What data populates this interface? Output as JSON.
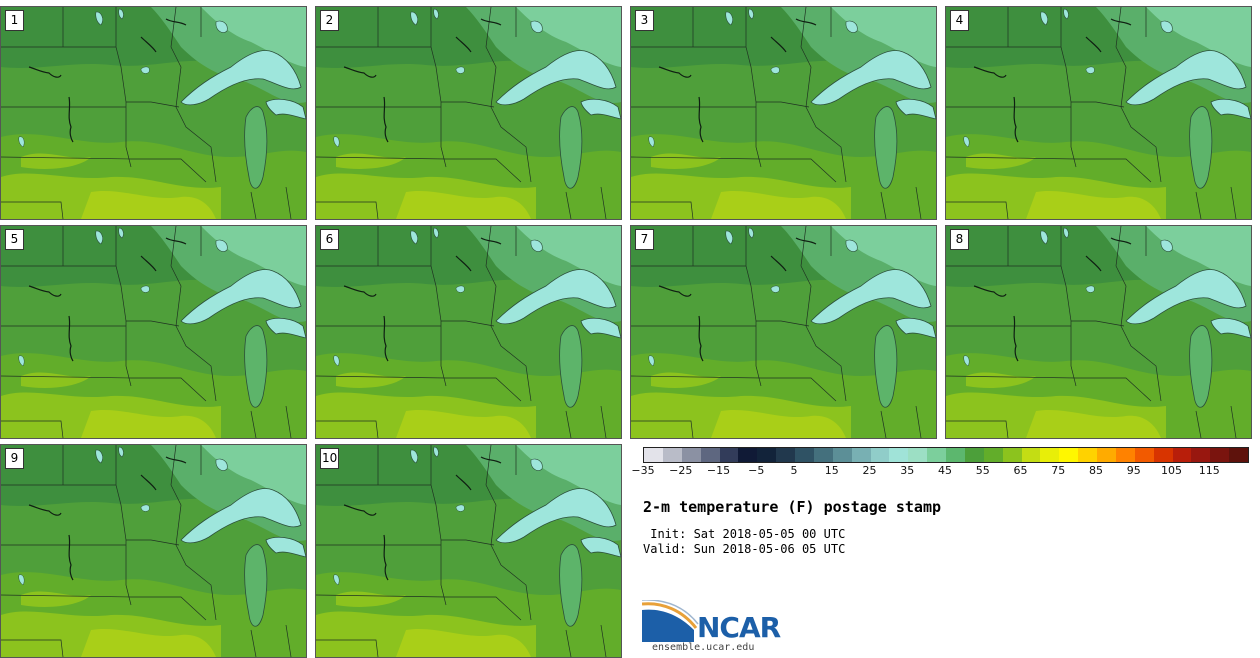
{
  "panels": [
    {
      "label": "1"
    },
    {
      "label": "2"
    },
    {
      "label": "3"
    },
    {
      "label": "4"
    },
    {
      "label": "5"
    },
    {
      "label": "6"
    },
    {
      "label": "7"
    },
    {
      "label": "8"
    },
    {
      "label": "9"
    },
    {
      "label": "10"
    }
  ],
  "colorbar": {
    "ticks": [
      "−35",
      "−25",
      "−15",
      "−5",
      "5",
      "15",
      "25",
      "35",
      "45",
      "55",
      "65",
      "75",
      "85",
      "95",
      "105",
      "115"
    ],
    "colors": [
      "#e3e3ea",
      "#b9bcc8",
      "#8b91a3",
      "#5e6780",
      "#323c5a",
      "#101a36",
      "#12233a",
      "#21384d",
      "#2f5264",
      "#44707d",
      "#5c8f97",
      "#78b0b3",
      "#90cdc9",
      "#a0e3d8",
      "#9cdfc4",
      "#7ccf9c",
      "#5cb76e",
      "#4c9f3a",
      "#62ad2a",
      "#8cc31e",
      "#c3dd14",
      "#e8ee08",
      "#fff700",
      "#ffd200",
      "#ffab00",
      "#ff8200",
      "#f25a00",
      "#d83400",
      "#b81e0a",
      "#98170f",
      "#7a140e",
      "#5e120c"
    ]
  },
  "title": "2-m temperature (F) postage stamp",
  "init": " Init: Sat 2018-05-05 00 UTC",
  "valid": "Valid: Sun 2018-05-06 05 UTC",
  "logo": {
    "text": "NCAR",
    "url_text": "ensemble.ucar.edu"
  },
  "colors": {
    "logo_blue": "#1c5fa8",
    "logo_orange": "#e8a13a",
    "field_dark": "#3e8f3e",
    "field_light": "#8fc31f",
    "lake": "#9ee6dc"
  }
}
